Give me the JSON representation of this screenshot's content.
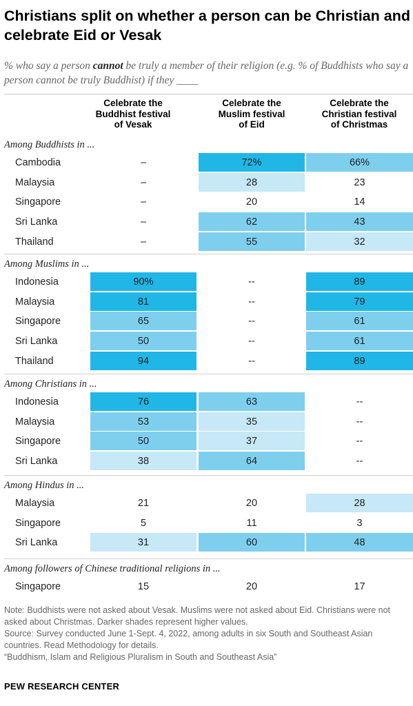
{
  "title": "Christians split on whether a person can be Christian and celebrate Eid or Vesak",
  "subtitle": {
    "before": "% who say a person ",
    "emphasis": "cannot",
    "after": " be truly a member of their religion (e.g. % of Buddhists who say a person cannot be truly Buddhist) if they ____"
  },
  "colors": {
    "shade_1": "#c6e8f7",
    "shade_2": "#7ecfee",
    "shade_3": "#20b7e6"
  },
  "chart_data": {
    "type": "table",
    "columns": [
      [
        "Celebrate the",
        "Buddhist festival",
        "of Vesak"
      ],
      [
        "Celebrate the",
        "Muslim festival",
        "of Eid"
      ],
      [
        "Celebrate the",
        "Christian festival",
        "of Christmas"
      ]
    ],
    "groups": [
      {
        "label": "Among Buddhists in ...",
        "rows": [
          {
            "label": "Cambodia",
            "values": [
              null,
              72,
              66
            ],
            "display": [
              "–",
              "72%",
              "66%"
            ]
          },
          {
            "label": "Malaysia",
            "values": [
              null,
              28,
              23
            ],
            "display": [
              "–",
              "28",
              "23"
            ]
          },
          {
            "label": "Singapore",
            "values": [
              null,
              20,
              14
            ],
            "display": [
              "–",
              "20",
              "14"
            ]
          },
          {
            "label": "Sri Lanka",
            "values": [
              null,
              62,
              43
            ],
            "display": [
              "–",
              "62",
              "43"
            ]
          },
          {
            "label": "Thailand",
            "values": [
              null,
              55,
              32
            ],
            "display": [
              "–",
              "55",
              "32"
            ]
          }
        ]
      },
      {
        "label": "Among Muslims in ...",
        "rows": [
          {
            "label": "Indonesia",
            "values": [
              90,
              null,
              89
            ],
            "display": [
              "90%",
              "--",
              "89"
            ]
          },
          {
            "label": "Malaysia",
            "values": [
              81,
              null,
              79
            ],
            "display": [
              "81",
              "--",
              "79"
            ]
          },
          {
            "label": "Singapore",
            "values": [
              65,
              null,
              61
            ],
            "display": [
              "65",
              "--",
              "61"
            ]
          },
          {
            "label": "Sri Lanka",
            "values": [
              50,
              null,
              61
            ],
            "display": [
              "50",
              "--",
              "61"
            ]
          },
          {
            "label": "Thailand",
            "values": [
              94,
              null,
              89
            ],
            "display": [
              "94",
              "--",
              "89"
            ]
          }
        ]
      },
      {
        "label": "Among Christians in ...",
        "rows": [
          {
            "label": "Indonesia",
            "values": [
              76,
              63,
              null
            ],
            "display": [
              "76",
              "63",
              "--"
            ]
          },
          {
            "label": "Malaysia",
            "values": [
              53,
              35,
              null
            ],
            "display": [
              "53",
              "35",
              "--"
            ]
          },
          {
            "label": "Singapore",
            "values": [
              50,
              37,
              null
            ],
            "display": [
              "50",
              "37",
              "--"
            ]
          },
          {
            "label": "Sri Lanka",
            "values": [
              38,
              64,
              null
            ],
            "display": [
              "38",
              "64",
              "--"
            ]
          }
        ]
      },
      {
        "label": "Among Hindus in ...",
        "rows": [
          {
            "label": "Malaysia",
            "values": [
              21,
              20,
              28
            ],
            "display": [
              "21",
              "20",
              "28"
            ]
          },
          {
            "label": "Singapore",
            "values": [
              5,
              11,
              3
            ],
            "display": [
              "5",
              "11",
              "3"
            ]
          },
          {
            "label": "Sri Lanka",
            "values": [
              31,
              60,
              48
            ],
            "display": [
              "31",
              "60",
              "48"
            ]
          }
        ]
      },
      {
        "label": "Among followers of Chinese traditional religions in ...",
        "rows": [
          {
            "label": "Singapore",
            "values": [
              15,
              20,
              17
            ],
            "display": [
              "15",
              "20",
              "17"
            ]
          }
        ]
      }
    ]
  },
  "notes": [
    "Note: Buddhists were not asked about Vesak. Muslims were not asked about Eid. Christians were not asked about Christmas. Darker shades represent higher values.",
    "Source: Survey conducted June 1-Sept. 4, 2022, among adults in six South and Southeast Asian countries. Read Methodology for details.",
    "“Buddhism, Islam and Religious Pluralism in South and Southeast Asia”"
  ],
  "footer": "PEW RESEARCH CENTER"
}
